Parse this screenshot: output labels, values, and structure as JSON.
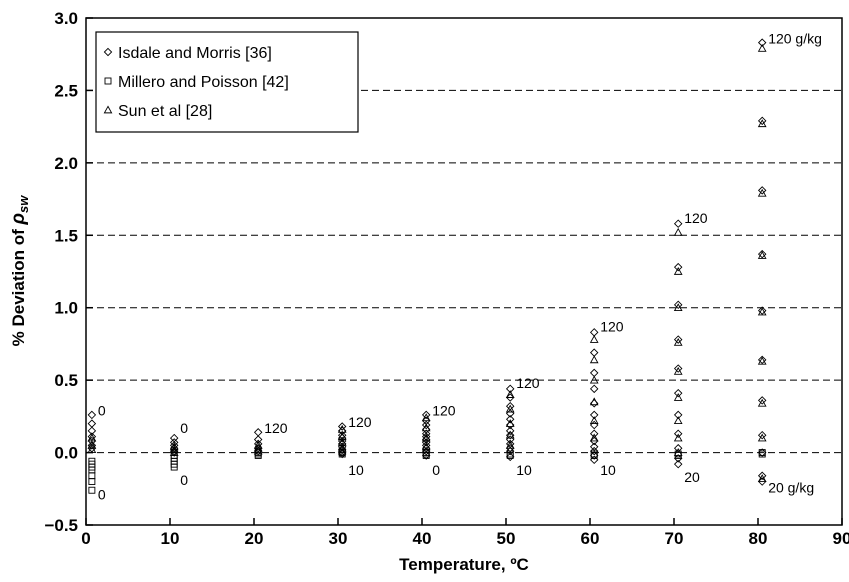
{
  "chart_data": {
    "type": "scatter",
    "xlabel": "Temperature, ºC",
    "ylabel": {
      "prefix": "% Deviation of ",
      "symbol": "ρ",
      "subscript": "sw"
    },
    "xlim": [
      0,
      90
    ],
    "ylim": [
      -0.5,
      3.0
    ],
    "xticks": [
      0,
      10,
      20,
      30,
      40,
      50,
      60,
      70,
      80,
      90
    ],
    "yticks": [
      -0.5,
      0.0,
      0.5,
      1.0,
      1.5,
      2.0,
      2.5,
      3.0
    ],
    "xtick_labels": [
      "0",
      "10",
      "20",
      "30",
      "40",
      "50",
      "60",
      "70",
      "80",
      "90"
    ],
    "ytick_labels": [
      "−0.5",
      "0.0",
      "0.5",
      "1.0",
      "1.5",
      "2.0",
      "2.5",
      "3.0"
    ],
    "grid": {
      "horizontal_dashed": true
    },
    "legend_position": "top-left",
    "series": [
      {
        "name": "Isdale and Morris [36]",
        "marker": "diamond",
        "x": [
          0.7,
          0.7,
          0.7,
          0.7,
          0.7,
          0.7,
          0.7,
          10.5,
          10.5,
          10.5,
          10.5,
          10.5,
          10.5,
          20.5,
          20.5,
          20.5,
          20.5,
          20.5,
          30.5,
          30.5,
          30.5,
          30.5,
          30.5,
          30.5,
          30.5,
          30.5,
          30.5,
          30.5,
          40.5,
          40.5,
          40.5,
          40.5,
          40.5,
          40.5,
          40.5,
          40.5,
          40.5,
          40.5,
          40.5,
          40.5,
          50.5,
          50.5,
          50.5,
          50.5,
          50.5,
          50.5,
          50.5,
          50.5,
          50.5,
          50.5,
          50.5,
          50.5,
          50.5,
          60.5,
          60.5,
          60.5,
          60.5,
          60.5,
          60.5,
          60.5,
          60.5,
          60.5,
          60.5,
          60.5,
          60.5,
          60.5,
          70.5,
          70.5,
          70.5,
          70.5,
          70.5,
          70.5,
          70.5,
          70.5,
          70.5,
          70.5,
          70.5,
          80.5,
          80.5,
          80.5,
          80.5,
          80.5,
          80.5,
          80.5,
          80.5,
          80.5,
          80.5,
          80.5
        ],
        "y": [
          0.26,
          0.2,
          0.15,
          0.11,
          0.08,
          0.05,
          0.03,
          0.1,
          0.07,
          0.05,
          0.03,
          0.01,
          0.0,
          0.14,
          0.09,
          0.06,
          0.03,
          0.01,
          0.18,
          0.15,
          0.12,
          0.1,
          0.08,
          0.06,
          0.04,
          0.02,
          0.0,
          -0.01,
          0.26,
          0.22,
          0.19,
          0.16,
          0.13,
          0.11,
          0.09,
          0.07,
          0.05,
          0.03,
          0.01,
          -0.02,
          0.44,
          0.38,
          0.32,
          0.27,
          0.23,
          0.19,
          0.15,
          0.12,
          0.09,
          0.06,
          0.03,
          0.01,
          -0.03,
          0.83,
          0.69,
          0.55,
          0.44,
          0.34,
          0.26,
          0.19,
          0.13,
          0.08,
          0.04,
          0.01,
          -0.02,
          -0.05,
          1.58,
          1.28,
          1.02,
          0.78,
          0.58,
          0.41,
          0.26,
          0.13,
          0.03,
          -0.04,
          -0.08,
          2.83,
          2.29,
          1.81,
          1.37,
          0.98,
          0.64,
          0.36,
          0.12,
          0.0,
          -0.16,
          -0.2
        ]
      },
      {
        "name": "Millero and Poisson [42]",
        "marker": "square",
        "x": [
          0.7,
          0.7,
          0.7,
          0.7,
          0.7,
          0.7,
          0.7,
          10.5,
          10.5,
          10.5,
          10.5,
          10.5,
          20.5,
          20.5,
          20.5,
          30.5,
          30.5,
          30.5,
          40.5,
          40.5,
          40.5,
          50.5,
          50.5,
          60.5,
          60.5,
          70.5,
          70.5,
          80.5,
          80.5
        ],
        "y": [
          -0.06,
          -0.08,
          -0.1,
          -0.12,
          -0.16,
          -0.2,
          -0.26,
          -0.02,
          -0.04,
          -0.06,
          -0.08,
          -0.1,
          0.0,
          -0.01,
          -0.02,
          0.01,
          0.0,
          -0.01,
          0.0,
          -0.01,
          -0.02,
          -0.01,
          -0.02,
          -0.01,
          -0.02,
          -0.01,
          -0.02,
          0.0,
          -0.01
        ]
      },
      {
        "name": "Sun et al [28]",
        "marker": "triangle",
        "x": [
          0.7,
          0.7,
          0.7,
          10.5,
          10.5,
          10.5,
          20.5,
          20.5,
          20.5,
          30.5,
          30.5,
          30.5,
          30.5,
          40.5,
          40.5,
          40.5,
          40.5,
          50.5,
          50.5,
          50.5,
          50.5,
          50.5,
          60.5,
          60.5,
          60.5,
          60.5,
          60.5,
          60.5,
          70.5,
          70.5,
          70.5,
          70.5,
          70.5,
          70.5,
          70.5,
          70.5,
          70.5,
          80.5,
          80.5,
          80.5,
          80.5,
          80.5,
          80.5,
          80.5,
          80.5,
          80.5
        ],
        "y": [
          0.1,
          0.05,
          0.02,
          0.04,
          0.02,
          0.0,
          0.05,
          0.03,
          0.01,
          0.16,
          0.11,
          0.07,
          0.03,
          0.24,
          0.17,
          0.1,
          0.04,
          0.4,
          0.3,
          0.2,
          0.12,
          0.05,
          0.78,
          0.64,
          0.5,
          0.35,
          0.22,
          0.1,
          1.52,
          1.25,
          1.0,
          0.76,
          0.56,
          0.38,
          0.22,
          0.1,
          0.0,
          2.79,
          2.27,
          1.79,
          1.36,
          0.97,
          0.63,
          0.34,
          0.1,
          -0.18
        ]
      }
    ],
    "annotations": [
      {
        "text": "0",
        "x": 0.7,
        "y": 0.29
      },
      {
        "text": "0",
        "x": 0.7,
        "y": -0.29
      },
      {
        "text": "0",
        "x": 10.5,
        "y": 0.17
      },
      {
        "text": "0",
        "x": 10.5,
        "y": -0.19
      },
      {
        "text": "120",
        "x": 20.5,
        "y": 0.17
      },
      {
        "text": "120",
        "x": 30.5,
        "y": 0.21
      },
      {
        "text": "10",
        "x": 30.5,
        "y": -0.12
      },
      {
        "text": "120",
        "x": 40.5,
        "y": 0.29
      },
      {
        "text": "0",
        "x": 40.5,
        "y": -0.12
      },
      {
        "text": "120",
        "x": 50.5,
        "y": 0.48
      },
      {
        "text": "10",
        "x": 50.5,
        "y": -0.12
      },
      {
        "text": "120",
        "x": 60.5,
        "y": 0.87
      },
      {
        "text": "10",
        "x": 60.5,
        "y": -0.12
      },
      {
        "text": "120",
        "x": 70.5,
        "y": 1.62
      },
      {
        "text": "20",
        "x": 70.5,
        "y": -0.17
      },
      {
        "text": "120 g/kg",
        "x": 80.5,
        "y": 2.86
      },
      {
        "text": "20 g/kg",
        "x": 80.5,
        "y": -0.24
      }
    ]
  }
}
